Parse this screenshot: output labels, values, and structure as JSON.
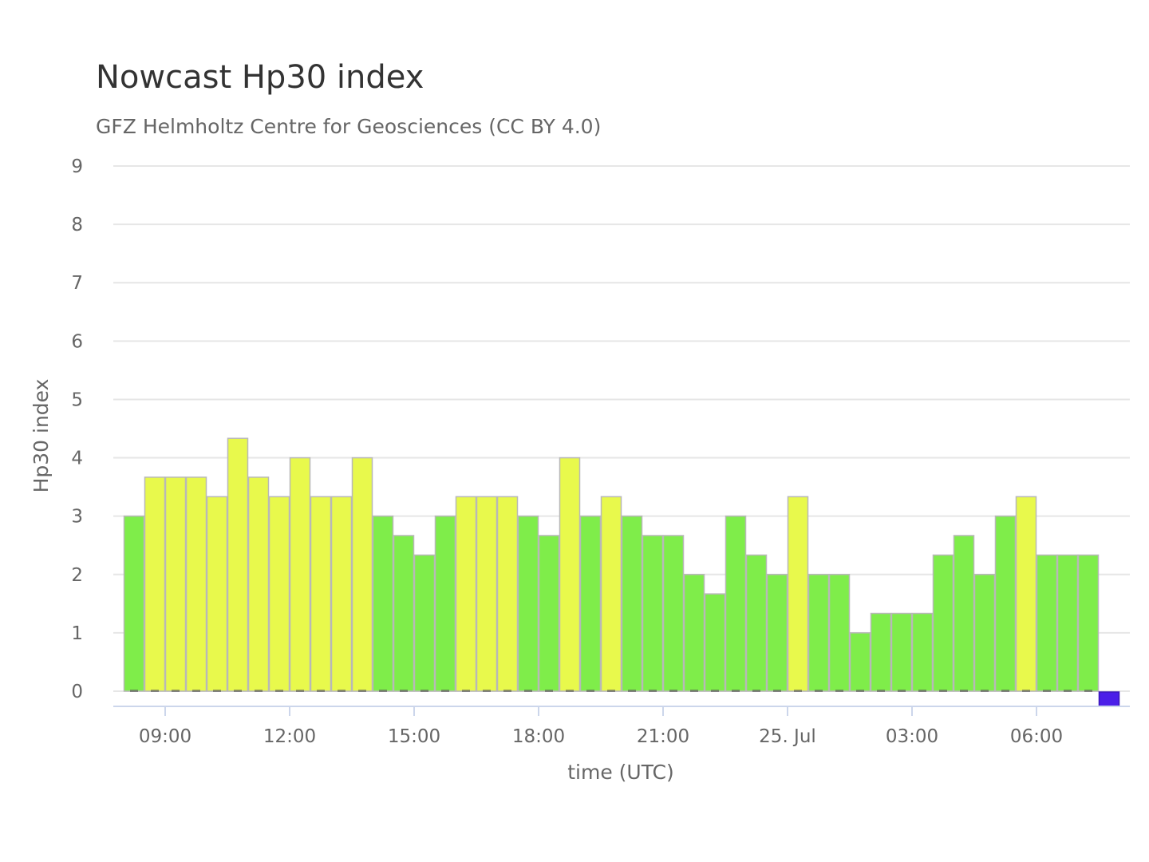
{
  "chart_data": {
    "type": "bar",
    "title": "Nowcast Hp30 index",
    "subtitle": "GFZ Helmholtz Centre for Geosciences (CC BY 4.0)",
    "xlabel": "time (UTC)",
    "ylabel": "Hp30 index",
    "ylim": [
      0,
      9
    ],
    "yticks": [
      0,
      1,
      2,
      3,
      4,
      5,
      6,
      7,
      8,
      9
    ],
    "xticks": [
      "09:00",
      "12:00",
      "15:00",
      "18:00",
      "21:00",
      "25. Jul",
      "03:00",
      "06:00"
    ],
    "x_start": "24 Jul 08:00 UTC",
    "x_step": "30 min",
    "grid": true,
    "values": [
      3.0,
      3.667,
      3.667,
      3.667,
      3.333,
      4.333,
      3.667,
      3.333,
      4.0,
      3.333,
      3.333,
      4.0,
      3.0,
      2.667,
      2.333,
      3.0,
      3.333,
      3.333,
      3.333,
      3.0,
      2.667,
      4.0,
      3.0,
      3.333,
      3.0,
      2.667,
      2.667,
      2.0,
      1.667,
      3.0,
      2.333,
      2.0,
      3.333,
      2.0,
      2.0,
      1.0,
      1.333,
      1.333,
      1.333,
      2.333,
      2.667,
      2.0,
      3.0,
      3.333,
      2.333,
      2.333,
      2.333,
      0.0
    ],
    "colors": {
      "below_3_33": "#7fed4a",
      "from_3_33": "#e8f94c",
      "latest": "#4b1fe8",
      "bar_border": "#b8b8b8",
      "grid": "#e6e6e6",
      "axis_line": "#ccd6eb"
    }
  }
}
